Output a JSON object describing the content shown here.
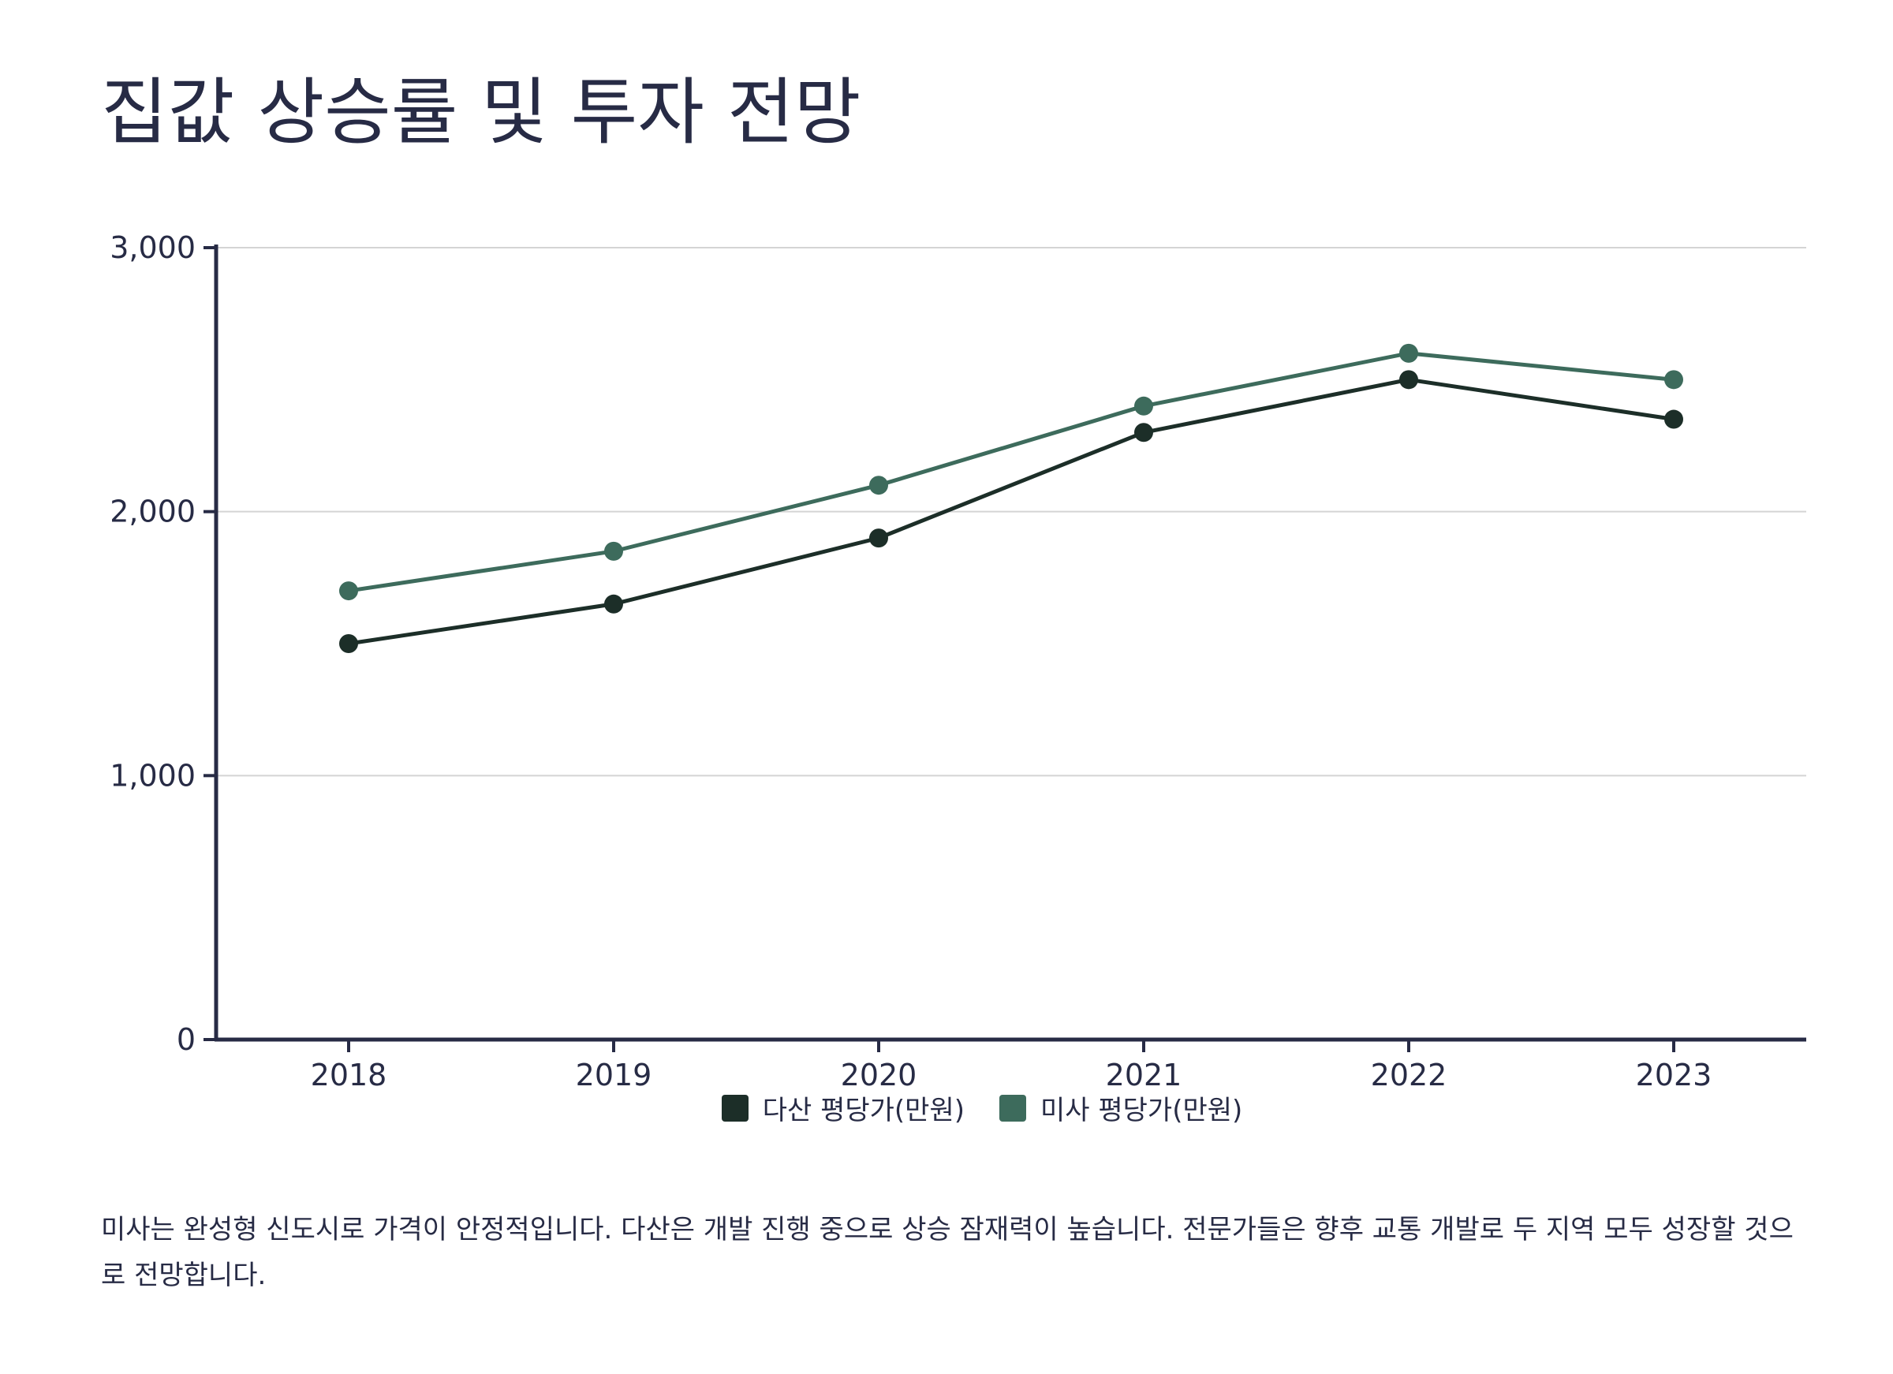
{
  "title": "집값 상승률 및 투자 전망",
  "note": "미사는 완성형 신도시로 가격이 안정적입니다. 다산은 개발 진행 중으로 상승 잠재력이 높습니다. 전문가들은 향후 교통 개발로 두 지역 모두 성장할 것으로 전망합니다.",
  "chart_data": {
    "type": "line",
    "title": "집값 상승률 및 투자 전망",
    "xlabel": "",
    "ylabel": "",
    "categories": [
      "2018",
      "2019",
      "2020",
      "2021",
      "2022",
      "2023"
    ],
    "ylim": [
      0,
      3000
    ],
    "yticks": [
      0,
      1000,
      2000,
      3000
    ],
    "ytick_labels": [
      "0",
      "1,000",
      "2,000",
      "3,000"
    ],
    "grid": true,
    "legend_position": "bottom-center",
    "series": [
      {
        "name": "다산 평당가(만원)",
        "color": "#1c2e28",
        "values": [
          1500,
          1650,
          1900,
          2300,
          2500,
          2350
        ]
      },
      {
        "name": "미사 평당가(만원)",
        "color": "#3d6b5c",
        "values": [
          1700,
          1850,
          2100,
          2400,
          2600,
          2500
        ]
      }
    ]
  }
}
